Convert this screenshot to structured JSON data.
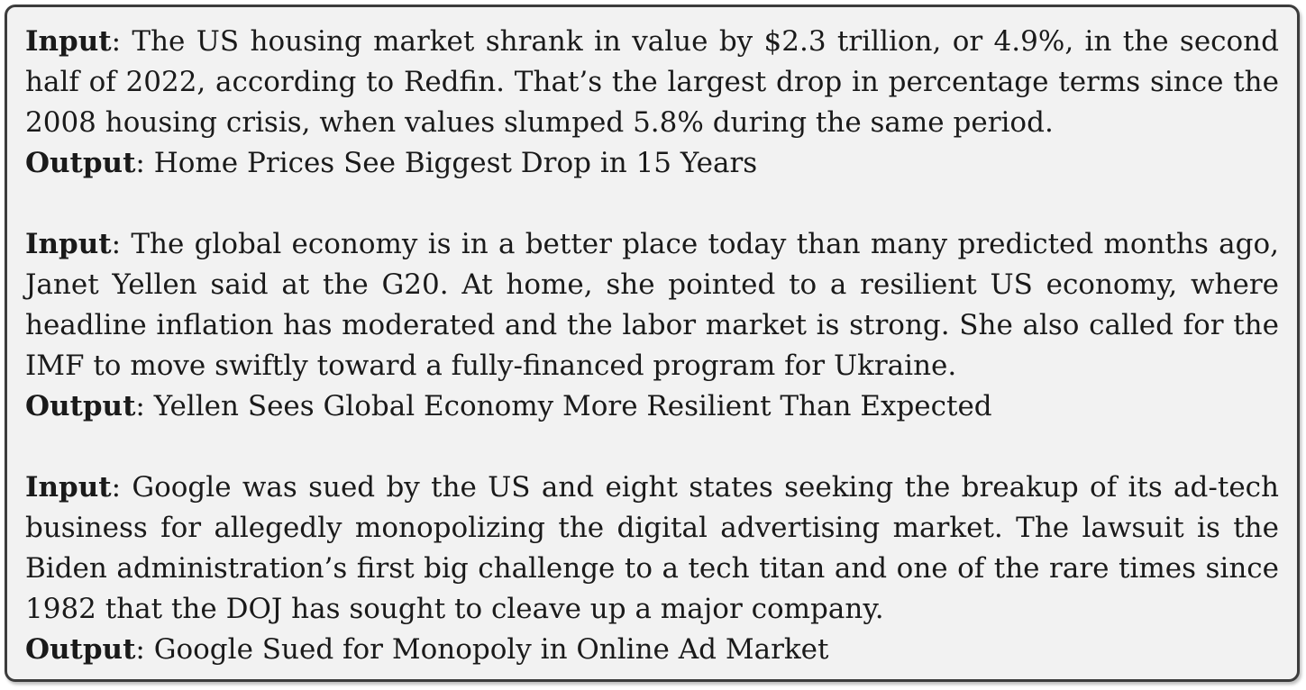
{
  "labels": {
    "input": "Input",
    "output": "Output",
    "separator": ":"
  },
  "examples": [
    {
      "input": "The US housing market shrank in value by $2.3 trillion, or 4.9%, in the second half of 2022, according to Redfin. That’s the largest drop in percentage terms since the 2008 housing crisis, when values slumped 5.8% during the same period.",
      "output": "Home Prices See Biggest Drop in 15 Years"
    },
    {
      "input": "The global economy is in a better place today than many predicted months ago, Janet Yellen said at the G20. At home, she pointed to a resilient US economy, where headline inflation has moderated and the labor market is strong. She also called for the IMF to move swiftly toward a fully-financed program for Ukraine.",
      "output": "Yellen Sees Global Economy More Resilient Than Expected"
    },
    {
      "input": "Google was sued by the US and eight states seeking the breakup of its ad-tech business for allegedly monopolizing the digital advertising market. The lawsuit is the Biden administration’s first big challenge to a tech titan and one of the rare times since 1982 that the DOJ has sought to cleave up a major company.",
      "output": "Google Sued for Monopoly in Online Ad Market"
    }
  ]
}
